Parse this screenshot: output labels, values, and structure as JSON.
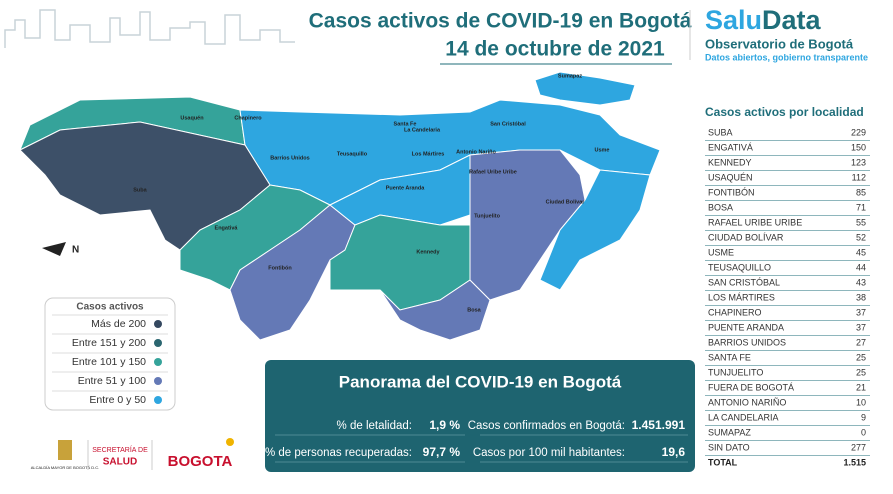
{
  "header": {
    "title": "Casos activos de COVID-19 en Bogotá",
    "date": "14 de octubre de 2021"
  },
  "brand": {
    "name_a": "Salu",
    "name_b": "Data",
    "subtitle": "Observatorio de Bogotá",
    "tagline": "Datos abiertos, gobierno transparente"
  },
  "map": {
    "north": "N",
    "labels": [
      "Usaquén",
      "Chapinero",
      "Santa Fe",
      "La Candelaria",
      "San Cristóbal",
      "Usme",
      "Barrios Unidos",
      "Teusaquillo",
      "Los Mártires",
      "Antonio Nariño",
      "Rafael Uribe Uribe",
      "Puente Aranda",
      "Tunjuelito",
      "Ciudad Bolívar",
      "Suba",
      "Engativá",
      "Kennedy",
      "Fontibón",
      "Bosa",
      "Sumapaz"
    ]
  },
  "legend": {
    "title": "Casos activos",
    "items": [
      {
        "label": "Más de 200",
        "color": "#344860"
      },
      {
        "label": "Entre 151 y 200",
        "color": "#2b6670"
      },
      {
        "label": "Entre 101 y 150",
        "color": "#35a39a"
      },
      {
        "label": "Entre 51 y 100",
        "color": "#6479b6"
      },
      {
        "label": "Entre 0 y 50",
        "color": "#2ea6e0"
      }
    ]
  },
  "table": {
    "title": "Casos activos por localidad",
    "rows": [
      [
        "SUBA",
        229
      ],
      [
        "ENGATIVÁ",
        150
      ],
      [
        "KENNEDY",
        123
      ],
      [
        "USAQUÉN",
        112
      ],
      [
        "FONTIBÓN",
        85
      ],
      [
        "BOSA",
        71
      ],
      [
        "RAFAEL URIBE URIBE",
        55
      ],
      [
        "CIUDAD BOLÍVAR",
        52
      ],
      [
        "USME",
        45
      ],
      [
        "TEUSAQUILLO",
        44
      ],
      [
        "SAN CRISTÓBAL",
        43
      ],
      [
        "LOS MÁRTIRES",
        38
      ],
      [
        "CHAPINERO",
        37
      ],
      [
        "PUENTE ARANDA",
        37
      ],
      [
        "BARRIOS UNIDOS",
        27
      ],
      [
        "SANTA FE",
        25
      ],
      [
        "TUNJUELITO",
        25
      ],
      [
        "FUERA DE BOGOTÁ",
        21
      ],
      [
        "ANTONIO NARIÑO",
        10
      ],
      [
        "LA CANDELARIA",
        9
      ],
      [
        "SUMAPAZ",
        0
      ],
      [
        "SIN DATO",
        277
      ]
    ],
    "total": [
      "TOTAL",
      "1.515"
    ]
  },
  "panorama": {
    "title": "Panorama del COVID-19 en Bogotá",
    "stats": [
      {
        "label": "% de letalidad:",
        "value": "1,9 %"
      },
      {
        "label": "Casos confirmados en Bogotá:",
        "value": "1.451.991"
      },
      {
        "label": "% de personas recuperadas:",
        "value": "97,7 %"
      },
      {
        "label": "Casos por 100 mil habitantes:",
        "value": "19,6"
      }
    ]
  },
  "footer": {
    "alcaldia": "ALCALDÍA MAYOR DE BOGOTÁ D.C.",
    "secretaria_a": "SECRETARÍA DE",
    "secretaria_b": "SALUD",
    "bogota": "BOGOTA"
  }
}
